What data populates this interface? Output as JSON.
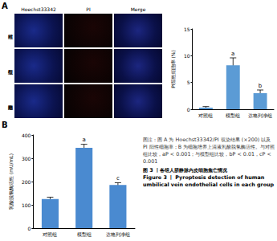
{
  "panel_a": {
    "label": "A",
    "columns": [
      "Hoechst33342",
      "PI",
      "Merge"
    ],
    "rows": [
      "对照组",
      "模型组",
      "达格列净组"
    ]
  },
  "panel_b": {
    "label": "B"
  },
  "chart_data": [
    {
      "type": "bar",
      "ylabel": "PI阳性细胞率 (%)",
      "categories": [
        "对照组",
        "模型组",
        "达格列净组"
      ],
      "values": [
        0.3,
        8.2,
        3.0
      ],
      "errors": [
        0.2,
        1.4,
        0.6
      ],
      "annotations": [
        null,
        "a",
        "b"
      ],
      "color": "#5b9bd5",
      "ylim": [
        0,
        15
      ],
      "yticks": [
        0,
        5,
        10,
        15
      ],
      "grid": false
    },
    {
      "type": "bar",
      "ylabel": "乳酸脱氢酶活性 (mU/mL)",
      "categories": [
        "对照组",
        "模型组",
        "达格列净组"
      ],
      "values": [
        125,
        345,
        185
      ],
      "errors": [
        8,
        15,
        10
      ],
      "annotations": [
        null,
        "a",
        "c"
      ],
      "color": "#4a8ad0",
      "ylim": [
        0,
        400
      ],
      "yticks": [
        0,
        100,
        200,
        300,
        400
      ],
      "grid": false
    }
  ],
  "caption": {
    "note": "图注：图 A 为 Hoechst33342/PI 双染结果 (×200) 以及 PI 阳性细胞率；B 为细胞培养上清液乳酸脱氢酶活性。与对照组比较，aP < 0.001；与模型组比较，bP < 0.01，cP < 0.001",
    "title_cn": "图 3 丨各组人脐静脉内皮细胞焦亡情况",
    "title_en": "Figure 3 丨 Pyroptosis detection of human umbilical vein endothelial cells in each group"
  }
}
